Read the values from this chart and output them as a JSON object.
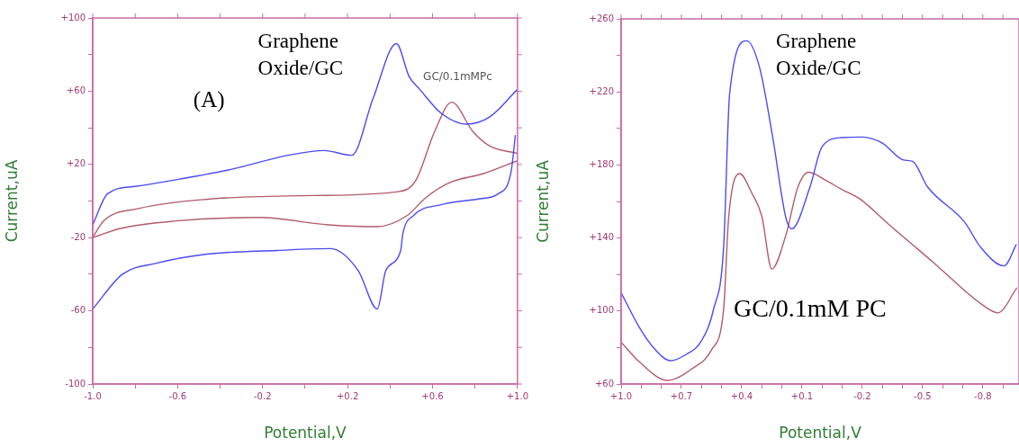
{
  "chart_data": [
    {
      "type": "line",
      "xlabel": "Potential,V",
      "ylabel": "Current,uA",
      "xlim": [
        -1.0,
        1.0
      ],
      "ylim": [
        -100,
        100
      ],
      "xticks": [
        {
          "value": -1.0,
          "label": "-1.0"
        },
        {
          "value": -0.8,
          "label": null
        },
        {
          "value": -0.6,
          "label": "-0.6"
        },
        {
          "value": -0.4,
          "label": null
        },
        {
          "value": -0.2,
          "label": "-0.2"
        },
        {
          "value": 0,
          "label": null
        },
        {
          "value": 0.2,
          "label": "+0.2"
        },
        {
          "value": 0.4,
          "label": null
        },
        {
          "value": 0.6,
          "label": "+0.6"
        },
        {
          "value": 0.8,
          "label": null
        },
        {
          "value": 1.0,
          "label": "+1.0"
        }
      ],
      "yticks": [
        {
          "value": -100,
          "label": "-100"
        },
        {
          "value": -80,
          "label": null
        },
        {
          "value": -60,
          "label": "-60"
        },
        {
          "value": -40,
          "label": null
        },
        {
          "value": -20,
          "label": "-20"
        },
        {
          "value": 0,
          "label": null
        },
        {
          "value": 20,
          "label": "+20"
        },
        {
          "value": 40,
          "label": null
        },
        {
          "value": 60,
          "label": "+60"
        },
        {
          "value": 80,
          "label": null
        },
        {
          "value": 100,
          "label": "+100"
        }
      ],
      "grid": false,
      "legend": false,
      "series": [
        {
          "color": "#4b4bf2",
          "x": [
            -1.0,
            -0.93,
            -0.8,
            -0.59,
            -0.34,
            -0.08,
            0.09,
            0.22,
            0.32,
            0.43,
            0.49,
            0.54,
            0.64,
            0.76,
            0.87,
            1.0
          ],
          "values": [
            -13,
            4,
            8,
            12,
            17.5,
            25,
            27.6,
            25,
            56,
            86,
            68,
            61,
            48,
            42,
            46,
            61
          ]
        },
        {
          "color": "#4b4bf2",
          "x": [
            0.99,
            0.97,
            0.91,
            0.81,
            0.64,
            0.51,
            0.46,
            0.45,
            0.38,
            0.34,
            0.25,
            0.12,
            -0.13,
            -0.46,
            -0.7,
            -0.86,
            -1.0
          ],
          "values": [
            36,
            16,
            4,
            1,
            -2,
            -8,
            -18,
            -27,
            -38,
            -59,
            -38,
            -26,
            -27,
            -29,
            -34,
            -40,
            -59
          ]
        },
        {
          "color": "#b25c6c",
          "x": [
            -1.0,
            -0.95,
            -0.78,
            -0.46,
            0.03,
            0.43,
            0.52,
            0.61,
            0.69,
            0.79,
            0.87,
            1.0
          ],
          "values": [
            -20,
            -11,
            -4,
            1,
            3,
            5,
            11,
            38,
            54,
            38,
            30,
            26
          ]
        },
        {
          "color": "#b25c6c",
          "x": [
            1.0,
            0.84,
            0.68,
            0.57,
            0.48,
            0.34,
            0.11,
            -0.22,
            -0.62,
            -0.87,
            -1.0
          ],
          "values": [
            22,
            15,
            10,
            2,
            -8,
            -14,
            -13,
            -9,
            -11,
            -15,
            -20
          ]
        }
      ],
      "annotations": [
        "(A)",
        "Graphene Oxide/GC",
        "GC/0.1mMPc"
      ]
    },
    {
      "type": "line",
      "xlabel": "Potential,V",
      "ylabel": "Current,uA",
      "xlim": [
        1.0,
        -0.98
      ],
      "ylim": [
        60,
        260
      ],
      "xticks": [
        {
          "value": 1.0,
          "label": "+1.0"
        },
        {
          "value": 0.9,
          "label": null
        },
        {
          "value": 0.8,
          "label": null
        },
        {
          "value": 0.7,
          "label": "+0.7"
        },
        {
          "value": 0.6,
          "label": null
        },
        {
          "value": 0.5,
          "label": null
        },
        {
          "value": 0.4,
          "label": "+0.4"
        },
        {
          "value": 0.3,
          "label": null
        },
        {
          "value": 0.2,
          "label": null
        },
        {
          "value": 0.1,
          "label": "+0.1"
        },
        {
          "value": 0,
          "label": null
        },
        {
          "value": -0.1,
          "label": null
        },
        {
          "value": -0.2,
          "label": "-0.2"
        },
        {
          "value": -0.3,
          "label": null
        },
        {
          "value": -0.4,
          "label": null
        },
        {
          "value": -0.5,
          "label": "-0.5"
        },
        {
          "value": -0.6,
          "label": null
        },
        {
          "value": -0.7,
          "label": null
        },
        {
          "value": -0.8,
          "label": "-0.8"
        },
        {
          "value": -0.9,
          "label": null
        }
      ],
      "yticks": [
        {
          "value": 60,
          "label": "+60"
        },
        {
          "value": 80,
          "label": null
        },
        {
          "value": 100,
          "label": "+100"
        },
        {
          "value": 120,
          "label": null
        },
        {
          "value": 140,
          "label": "+140"
        },
        {
          "value": 160,
          "label": null
        },
        {
          "value": 180,
          "label": "+180"
        },
        {
          "value": 200,
          "label": null
        },
        {
          "value": 220,
          "label": "+220"
        },
        {
          "value": 240,
          "label": null
        },
        {
          "value": 260,
          "label": "+260"
        }
      ],
      "grid": false,
      "legend": false,
      "series": [
        {
          "color": "#4b4bf2",
          "x": [
            1.0,
            0.907,
            0.83,
            0.754,
            0.68,
            0.6,
            0.54,
            0.49,
            0.46,
            0.375,
            0.31,
            0.244,
            0.18,
            0.151,
            0.06,
            0.0,
            -0.096,
            -0.2,
            -0.3,
            -0.405,
            -0.45,
            -0.525,
            -0.71,
            -0.79,
            -0.906,
            -0.967
          ],
          "values": [
            110,
            90.6,
            78.8,
            72.8,
            76,
            83.7,
            101,
            134.8,
            219,
            248,
            233,
            194,
            151,
            145,
            168,
            190,
            195,
            195.3,
            192,
            182.7,
            182,
            168,
            148.6,
            134.8,
            124.7,
            136.5
          ]
        },
        {
          "color": "#b25c6c",
          "x": [
            1.0,
            0.907,
            0.77,
            0.647,
            0.55,
            0.49,
            0.465,
            0.41,
            0.35,
            0.3,
            0.25,
            0.18,
            0.12,
            0.067,
            -0.018,
            -0.096,
            -0.188,
            -0.327,
            -0.557,
            -0.79,
            -0.875,
            -0.97
          ],
          "values": [
            82.9,
            71.9,
            62,
            68.4,
            78.8,
            100.8,
            151,
            175.3,
            164.7,
            152,
            123,
            141.6,
            168,
            176,
            171.6,
            166.7,
            161.4,
            147.9,
            126.3,
            104,
            99,
            112.8
          ]
        }
      ],
      "annotations": [
        "Graphene Oxide/GC",
        "GC/0.1mM PC"
      ]
    }
  ]
}
